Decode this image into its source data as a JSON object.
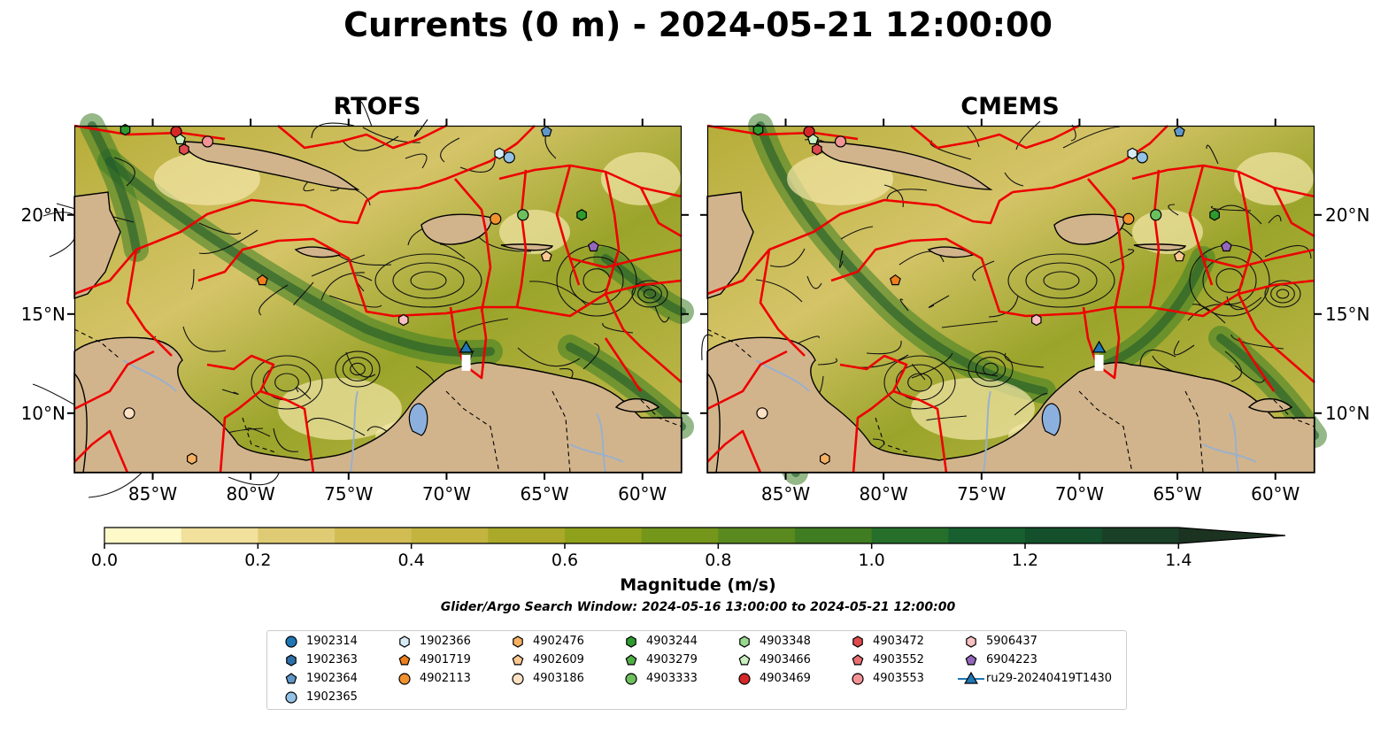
{
  "title": "Currents (0 m) - 2024-05-21 12:00:00",
  "subtitle": "Glider/Argo Search Window: 2024-05-16 13:00:00 to 2024-05-21 12:00:00",
  "chart_data": [
    {
      "type": "heatmap",
      "title": "RTOFS",
      "variable": "surface current magnitude with streamlines",
      "lon_range": [
        -89,
        -58
      ],
      "lat_range": [
        7,
        24.5
      ],
      "x_ticks": [
        "85°W",
        "80°W",
        "75°W",
        "70°W",
        "65°W",
        "60°W"
      ],
      "y_ticks": [
        "10°N",
        "15°N",
        "20°N"
      ],
      "grid": false
    },
    {
      "type": "heatmap",
      "title": "CMEMS",
      "variable": "surface current magnitude with streamlines",
      "lon_range": [
        -89,
        -58
      ],
      "lat_range": [
        7,
        24.5
      ],
      "x_ticks": [
        "85°W",
        "80°W",
        "75°W",
        "70°W",
        "65°W",
        "60°W"
      ],
      "y_ticks": [
        "10°N",
        "15°N",
        "20°N"
      ],
      "grid": false
    }
  ],
  "colorbar": {
    "label": "Magnitude (m/s)",
    "ticks": [
      "0.0",
      "0.2",
      "0.4",
      "0.6",
      "0.8",
      "1.0",
      "1.2",
      "1.4"
    ],
    "range": [
      0,
      1.5
    ],
    "extend": "max",
    "colors": [
      "#fef9c9",
      "#f1e19d",
      "#e0cb75",
      "#d2bd55",
      "#c3b440",
      "#aaa92a",
      "#8fa11a",
      "#74961b",
      "#5a8a1f",
      "#3f7c22",
      "#266f2b",
      "#175f2e",
      "#14502b",
      "#1a4027",
      "#1d3322"
    ]
  },
  "legend": {
    "placement": "bottom",
    "entries": [
      {
        "label": "1902314",
        "marker": "circle",
        "color": "#1f77b4"
      },
      {
        "label": "1902363",
        "marker": "hexagon",
        "color": "#2f6fa8"
      },
      {
        "label": "1902364",
        "marker": "pentagon",
        "color": "#5f97c9"
      },
      {
        "label": "1902365",
        "marker": "circle",
        "color": "#93c2e6"
      },
      {
        "label": "1902366",
        "marker": "hexagon",
        "color": "#d7ebf7"
      },
      {
        "label": "4901719",
        "marker": "pentagon",
        "color": "#ee7f1c"
      },
      {
        "label": "4902113",
        "marker": "circle",
        "color": "#f2922f"
      },
      {
        "label": "4902476",
        "marker": "hexagon",
        "color": "#f6b061"
      },
      {
        "label": "4902609",
        "marker": "pentagon",
        "color": "#fbc891"
      },
      {
        "label": "4903186",
        "marker": "circle",
        "color": "#fde1c3"
      },
      {
        "label": "4903244",
        "marker": "hexagon",
        "color": "#2e9b2e"
      },
      {
        "label": "4903279",
        "marker": "pentagon",
        "color": "#50ae47"
      },
      {
        "label": "4903333",
        "marker": "circle",
        "color": "#6cc05d"
      },
      {
        "label": "4903348",
        "marker": "hexagon",
        "color": "#98d98e"
      },
      {
        "label": "4903466",
        "marker": "pentagon",
        "color": "#c8f0c0"
      },
      {
        "label": "4903469",
        "marker": "circle",
        "color": "#d62728"
      },
      {
        "label": "4903472",
        "marker": "hexagon",
        "color": "#e04a4e"
      },
      {
        "label": "4903552",
        "marker": "pentagon",
        "color": "#ea6e72"
      },
      {
        "label": "4903553",
        "marker": "circle",
        "color": "#f39396"
      },
      {
        "label": "5906437",
        "marker": "hexagon",
        "color": "#f8c0c2"
      },
      {
        "label": "6904223",
        "marker": "pentagon",
        "color": "#9467bd"
      },
      {
        "label": "ru29-20240419T1430",
        "marker": "triangle-line",
        "color": "#1f77b4"
      }
    ]
  },
  "markers": [
    {
      "id": "4903244",
      "lon": -86.4,
      "lat": 24.3
    },
    {
      "id": "4903469",
      "lon": -83.8,
      "lat": 24.2
    },
    {
      "id": "4903466",
      "lon": -83.6,
      "lat": 23.8
    },
    {
      "id": "4903472",
      "lon": -83.4,
      "lat": 23.3
    },
    {
      "id": "4903553",
      "lon": -82.2,
      "lat": 23.7
    },
    {
      "id": "1902366",
      "lon": -67.3,
      "lat": 23.1
    },
    {
      "id": "1902365",
      "lon": -66.8,
      "lat": 22.9
    },
    {
      "id": "1902364",
      "lon": -64.9,
      "lat": 24.2
    },
    {
      "id": "4902113",
      "lon": -67.5,
      "lat": 19.8
    },
    {
      "id": "4903333",
      "lon": -66.1,
      "lat": 20.0
    },
    {
      "id": "4903244",
      "lon": -63.1,
      "lat": 20.0
    },
    {
      "id": "6904223",
      "lon": -62.5,
      "lat": 18.4
    },
    {
      "id": "4902609",
      "lon": -64.9,
      "lat": 17.9
    },
    {
      "id": "4901719",
      "lon": -79.4,
      "lat": 16.7
    },
    {
      "id": "5906437",
      "lon": -72.2,
      "lat": 14.7
    },
    {
      "id": "4903186",
      "lon": -86.2,
      "lat": 10.0
    },
    {
      "id": "4902476",
      "lon": -83.0,
      "lat": 7.7
    },
    {
      "id": "ru29-20240419T1430",
      "lon": -69.0,
      "lat": 13.3
    }
  ]
}
